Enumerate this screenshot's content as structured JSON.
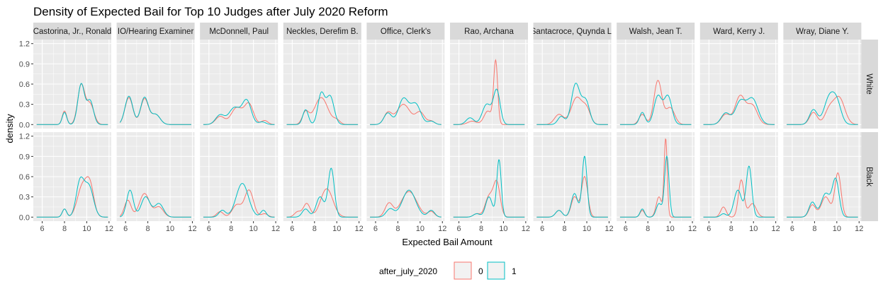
{
  "chart_data": {
    "type": "line",
    "title": "Density of Expected Bail for Top 10 Judges after July 2020 Reform",
    "xlabel": "Expected Bail Amount",
    "ylabel": "density",
    "xlim": [
      5.2,
      12.2
    ],
    "ylim": [
      -0.06,
      1.26
    ],
    "x_ticks": [
      6,
      8,
      10,
      12
    ],
    "y_ticks": [
      0.0,
      0.3,
      0.6,
      0.9,
      1.2
    ],
    "y_tick_labels": [
      "0.0",
      "0.3",
      "0.6",
      "0.9",
      "1.2"
    ],
    "grid": true,
    "legend": {
      "title": "after_july_2020",
      "position": "bottom",
      "entries": [
        {
          "label": "0",
          "color": "#F8766D"
        },
        {
          "label": "1",
          "color": "#00BFC4"
        }
      ]
    },
    "row_facets": [
      "White",
      "Black"
    ],
    "col_facets": [
      "Castorina, Jr., Ronald",
      "IO/Hearing Examiner",
      "McDonnell, Paul",
      "Neckles, Derefim B.",
      "Office, Clerk's",
      "Rao, Archana",
      "Santacroce, Quynda L.",
      "Walsh, Jean T.",
      "Ward, Kerry J.",
      "Wray, Diane Y."
    ],
    "x_range": [
      5.5,
      11.9
    ],
    "panels": [
      {
        "judge": "Castorina, Jr., Ronald",
        "race": "White",
        "series": [
          {
            "name": "0",
            "peaks": [
              [
                8.0,
                0.2,
                0.2
              ],
              [
                9.5,
                0.58,
                0.32
              ],
              [
                10.3,
                0.3,
                0.35
              ]
            ]
          },
          {
            "name": "1",
            "peaks": [
              [
                8.0,
                0.18,
                0.2
              ],
              [
                9.5,
                0.6,
                0.3
              ],
              [
                10.3,
                0.35,
                0.3
              ]
            ]
          }
        ]
      },
      {
        "judge": "Castorina, Jr., Ronald",
        "race": "Black",
        "series": [
          {
            "name": "0",
            "peaks": [
              [
                8.0,
                0.12,
                0.2
              ],
              [
                9.6,
                0.45,
                0.45
              ],
              [
                10.3,
                0.42,
                0.35
              ]
            ]
          },
          {
            "name": "1",
            "peaks": [
              [
                8.0,
                0.12,
                0.2
              ],
              [
                9.4,
                0.52,
                0.35
              ],
              [
                10.2,
                0.45,
                0.4
              ]
            ]
          }
        ]
      },
      {
        "judge": "IO/Hearing Examiner",
        "race": "White",
        "series": [
          {
            "name": "0",
            "peaks": [
              [
                6.3,
                0.4,
                0.35
              ],
              [
                7.7,
                0.38,
                0.35
              ],
              [
                8.7,
                0.15,
                0.4
              ]
            ]
          },
          {
            "name": "1",
            "peaks": [
              [
                6.3,
                0.42,
                0.35
              ],
              [
                7.7,
                0.4,
                0.35
              ],
              [
                8.7,
                0.15,
                0.4
              ]
            ]
          }
        ]
      },
      {
        "judge": "IO/Hearing Examiner",
        "race": "Black",
        "series": [
          {
            "name": "0",
            "peaks": [
              [
                6.2,
                0.25,
                0.3
              ],
              [
                7.7,
                0.35,
                0.45
              ],
              [
                9.0,
                0.15,
                0.4
              ]
            ]
          },
          {
            "name": "1",
            "peaks": [
              [
                6.4,
                0.4,
                0.3
              ],
              [
                7.8,
                0.3,
                0.4
              ],
              [
                9.0,
                0.2,
                0.4
              ]
            ]
          }
        ]
      },
      {
        "judge": "McDonnell, Paul",
        "race": "White",
        "series": [
          {
            "name": "0",
            "peaks": [
              [
                7.0,
                0.12,
                0.4
              ],
              [
                8.5,
                0.25,
                0.5
              ],
              [
                9.6,
                0.3,
                0.4
              ],
              [
                11.0,
                0.06,
                0.3
              ]
            ]
          },
          {
            "name": "1",
            "peaks": [
              [
                7.0,
                0.14,
                0.4
              ],
              [
                8.3,
                0.25,
                0.5
              ],
              [
                9.4,
                0.35,
                0.4
              ],
              [
                10.8,
                0.04,
                0.3
              ]
            ]
          }
        ]
      },
      {
        "judge": "McDonnell, Paul",
        "race": "Black",
        "series": [
          {
            "name": "0",
            "peaks": [
              [
                7.0,
                0.08,
                0.3
              ],
              [
                8.5,
                0.18,
                0.4
              ],
              [
                9.6,
                0.4,
                0.4
              ],
              [
                11.0,
                0.05,
                0.3
              ]
            ]
          },
          {
            "name": "1",
            "peaks": [
              [
                7.2,
                0.1,
                0.3
              ],
              [
                9.0,
                0.5,
                0.55
              ],
              [
                10.9,
                0.1,
                0.25
              ]
            ]
          }
        ]
      },
      {
        "judge": "Neckles, Derefim B.",
        "race": "White",
        "series": [
          {
            "name": "0",
            "peaks": [
              [
                7.2,
                0.18,
                0.3
              ],
              [
                8.6,
                0.4,
                0.6
              ],
              [
                10.0,
                0.06,
                0.3
              ]
            ]
          },
          {
            "name": "1",
            "peaks": [
              [
                7.2,
                0.22,
                0.25
              ],
              [
                8.6,
                0.45,
                0.3
              ],
              [
                9.4,
                0.42,
                0.35
              ]
            ]
          }
        ]
      },
      {
        "judge": "Neckles, Derefim B.",
        "race": "Black",
        "series": [
          {
            "name": "0",
            "peaks": [
              [
                6.5,
                0.08,
                0.3
              ],
              [
                7.3,
                0.2,
                0.3
              ],
              [
                9.1,
                0.42,
                0.55
              ]
            ]
          },
          {
            "name": "1",
            "peaks": [
              [
                7.2,
                0.12,
                0.3
              ],
              [
                8.5,
                0.3,
                0.35
              ],
              [
                9.5,
                0.72,
                0.28
              ]
            ]
          }
        ]
      },
      {
        "judge": "Office, Clerk's",
        "race": "White",
        "series": [
          {
            "name": "0",
            "peaks": [
              [
                7.1,
                0.17,
                0.35
              ],
              [
                8.5,
                0.3,
                0.6
              ],
              [
                10.0,
                0.18,
                0.4
              ],
              [
                11.0,
                0.05,
                0.3
              ]
            ]
          },
          {
            "name": "1",
            "peaks": [
              [
                7.1,
                0.17,
                0.35
              ],
              [
                8.5,
                0.38,
                0.45
              ],
              [
                9.6,
                0.3,
                0.45
              ],
              [
                11.0,
                0.05,
                0.3
              ]
            ]
          }
        ]
      },
      {
        "judge": "Office, Clerk's",
        "race": "Black",
        "series": [
          {
            "name": "0",
            "peaks": [
              [
                7.2,
                0.2,
                0.35
              ],
              [
                9.0,
                0.38,
                0.7
              ],
              [
                11.0,
                0.08,
                0.3
              ]
            ]
          },
          {
            "name": "1",
            "peaks": [
              [
                7.3,
                0.12,
                0.35
              ],
              [
                9.0,
                0.4,
                0.6
              ],
              [
                11.0,
                0.1,
                0.3
              ]
            ]
          }
        ]
      },
      {
        "judge": "Rao, Archana",
        "race": "White",
        "series": [
          {
            "name": "0",
            "peaks": [
              [
                7.2,
                0.05,
                0.4
              ],
              [
                8.6,
                0.2,
                0.35
              ],
              [
                9.3,
                0.93,
                0.18
              ]
            ]
          },
          {
            "name": "1",
            "peaks": [
              [
                7.0,
                0.1,
                0.35
              ],
              [
                8.5,
                0.3,
                0.4
              ],
              [
                9.4,
                0.5,
                0.3
              ]
            ]
          }
        ]
      },
      {
        "judge": "Rao, Archana",
        "race": "Black",
        "series": [
          {
            "name": "0",
            "peaks": [
              [
                7.6,
                0.05,
                0.3
              ],
              [
                8.7,
                0.3,
                0.35
              ],
              [
                9.4,
                0.5,
                0.3
              ]
            ]
          },
          {
            "name": "1",
            "peaks": [
              [
                7.6,
                0.05,
                0.3
              ],
              [
                8.7,
                0.3,
                0.3
              ],
              [
                9.6,
                0.85,
                0.2
              ]
            ]
          }
        ]
      },
      {
        "judge": "Santacroce, Quynda L.",
        "race": "White",
        "series": [
          {
            "name": "0",
            "peaks": [
              [
                7.5,
                0.15,
                0.4
              ],
              [
                9.1,
                0.4,
                0.5
              ],
              [
                10.0,
                0.2,
                0.35
              ]
            ]
          },
          {
            "name": "1",
            "peaks": [
              [
                7.7,
                0.12,
                0.3
              ],
              [
                9.0,
                0.6,
                0.38
              ],
              [
                9.9,
                0.35,
                0.35
              ]
            ]
          }
        ]
      },
      {
        "judge": "Santacroce, Quynda L.",
        "race": "Black",
        "series": [
          {
            "name": "0",
            "peaks": [
              [
                7.5,
                0.1,
                0.3
              ],
              [
                8.9,
                0.3,
                0.3
              ],
              [
                9.8,
                0.6,
                0.28
              ]
            ]
          },
          {
            "name": "1",
            "peaks": [
              [
                7.5,
                0.1,
                0.3
              ],
              [
                8.9,
                0.35,
                0.3
              ],
              [
                9.8,
                0.9,
                0.22
              ]
            ]
          }
        ]
      },
      {
        "judge": "Walsh, Jean T.",
        "race": "White",
        "series": [
          {
            "name": "0",
            "peaks": [
              [
                7.5,
                0.15,
                0.3
              ],
              [
                8.9,
                0.65,
                0.35
              ],
              [
                10.0,
                0.25,
                0.4
              ]
            ]
          },
          {
            "name": "1",
            "peaks": [
              [
                7.5,
                0.18,
                0.25
              ],
              [
                8.9,
                0.42,
                0.35
              ],
              [
                9.8,
                0.42,
                0.35
              ]
            ]
          }
        ]
      },
      {
        "judge": "Walsh, Jean T.",
        "race": "Black",
        "series": [
          {
            "name": "0",
            "peaks": [
              [
                7.5,
                0.1,
                0.2
              ],
              [
                9.0,
                0.3,
                0.25
              ],
              [
                9.6,
                1.15,
                0.14
              ]
            ]
          },
          {
            "name": "1",
            "peaks": [
              [
                7.5,
                0.12,
                0.2
              ],
              [
                9.0,
                0.2,
                0.25
              ],
              [
                9.7,
                0.9,
                0.2
              ]
            ]
          }
        ]
      },
      {
        "judge": "Ward, Kerry J.",
        "race": "White",
        "series": [
          {
            "name": "0",
            "peaks": [
              [
                7.5,
                0.15,
                0.4
              ],
              [
                8.8,
                0.42,
                0.45
              ],
              [
                9.9,
                0.28,
                0.45
              ]
            ]
          },
          {
            "name": "1",
            "peaks": [
              [
                7.5,
                0.17,
                0.4
              ],
              [
                8.8,
                0.33,
                0.45
              ],
              [
                9.9,
                0.38,
                0.5
              ]
            ]
          }
        ]
      },
      {
        "judge": "Ward, Kerry J.",
        "race": "Black",
        "series": [
          {
            "name": "0",
            "peaks": [
              [
                7.3,
                0.15,
                0.25
              ],
              [
                8.9,
                0.55,
                0.25
              ],
              [
                9.9,
                0.2,
                0.35
              ]
            ]
          },
          {
            "name": "1",
            "peaks": [
              [
                7.3,
                0.05,
                0.25
              ],
              [
                8.6,
                0.4,
                0.35
              ],
              [
                9.6,
                0.75,
                0.25
              ]
            ]
          }
        ]
      },
      {
        "judge": "Wray, Diane Y.",
        "race": "White",
        "series": [
          {
            "name": "0",
            "peaks": [
              [
                7.9,
                0.18,
                0.35
              ],
              [
                9.3,
                0.2,
                0.4
              ],
              [
                10.2,
                0.4,
                0.5
              ]
            ]
          },
          {
            "name": "1",
            "peaks": [
              [
                7.9,
                0.22,
                0.35
              ],
              [
                9.3,
                0.38,
                0.45
              ],
              [
                10.0,
                0.3,
                0.4
              ]
            ]
          }
        ]
      },
      {
        "judge": "Wray, Diane Y.",
        "race": "Black",
        "series": [
          {
            "name": "0",
            "peaks": [
              [
                7.8,
                0.18,
                0.3
              ],
              [
                9.0,
                0.3,
                0.4
              ],
              [
                10.1,
                0.65,
                0.28
              ]
            ]
          },
          {
            "name": "1",
            "peaks": [
              [
                7.8,
                0.22,
                0.3
              ],
              [
                9.0,
                0.35,
                0.4
              ],
              [
                9.9,
                0.55,
                0.3
              ]
            ]
          }
        ]
      }
    ]
  }
}
